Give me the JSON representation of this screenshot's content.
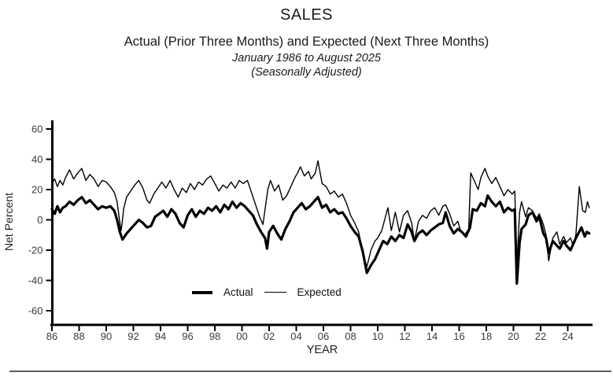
{
  "header": {
    "title": "SALES",
    "subtitle": "Actual (Prior Three Months) and Expected (Next Three Months)",
    "date_range": "January 1986 to August 2025",
    "adjustment_note": "(Seasonally Adjusted)"
  },
  "chart_data": {
    "type": "line",
    "title": "SALES",
    "xlabel": "YEAR",
    "ylabel": "Net Percent",
    "x_domain": [
      1986,
      2025.67
    ],
    "ylim": [
      -60,
      60
    ],
    "grid": false,
    "legend_position": "inside-bottom-left",
    "line_color": "#000000",
    "axis_color": "#000000",
    "tick_label_color": "#3c3c3c",
    "y_ticks": {
      "values": [
        60,
        40,
        20,
        0,
        -20,
        -40,
        -60
      ],
      "labels": [
        "60",
        "40",
        "20",
        "0",
        "-20",
        "-40",
        "-60"
      ]
    },
    "x_ticks": {
      "years": [
        1986,
        1988,
        1990,
        1992,
        1994,
        1996,
        1998,
        2000,
        2002,
        2004,
        2006,
        2008,
        2010,
        2012,
        2014,
        2016,
        2018,
        2020,
        2022,
        2024
      ],
      "labels": [
        "86",
        "88",
        "90",
        "92",
        "94",
        "96",
        "98",
        "00",
        "02",
        "04",
        "06",
        "08",
        "10",
        "12",
        "14",
        "16",
        "18",
        "20",
        "22",
        "24"
      ]
    },
    "series": [
      {
        "name": "Actual",
        "style": "thick",
        "points": [
          [
            1986.0,
            7
          ],
          [
            1986.2,
            4
          ],
          [
            1986.4,
            9
          ],
          [
            1986.6,
            5
          ],
          [
            1986.8,
            8
          ],
          [
            1987.0,
            9
          ],
          [
            1987.3,
            12
          ],
          [
            1987.6,
            10
          ],
          [
            1987.9,
            13
          ],
          [
            1988.2,
            15
          ],
          [
            1988.5,
            11
          ],
          [
            1988.8,
            13
          ],
          [
            1989.1,
            10
          ],
          [
            1989.4,
            7
          ],
          [
            1989.7,
            9
          ],
          [
            1990.0,
            8
          ],
          [
            1990.3,
            9
          ],
          [
            1990.6,
            6
          ],
          [
            1990.8,
            0
          ],
          [
            1991.0,
            -8
          ],
          [
            1991.2,
            -13
          ],
          [
            1991.5,
            -9
          ],
          [
            1991.8,
            -6
          ],
          [
            1992.1,
            -3
          ],
          [
            1992.4,
            0
          ],
          [
            1992.7,
            -2
          ],
          [
            1993.0,
            -5
          ],
          [
            1993.3,
            -4
          ],
          [
            1993.6,
            2
          ],
          [
            1993.9,
            4
          ],
          [
            1994.2,
            6
          ],
          [
            1994.5,
            2
          ],
          [
            1994.8,
            7
          ],
          [
            1995.1,
            4
          ],
          [
            1995.4,
            -2
          ],
          [
            1995.7,
            -5
          ],
          [
            1996.0,
            3
          ],
          [
            1996.3,
            7
          ],
          [
            1996.6,
            2
          ],
          [
            1996.9,
            6
          ],
          [
            1997.2,
            4
          ],
          [
            1997.5,
            8
          ],
          [
            1997.8,
            6
          ],
          [
            1998.1,
            9
          ],
          [
            1998.4,
            5
          ],
          [
            1998.7,
            10
          ],
          [
            1999.0,
            7
          ],
          [
            1999.3,
            12
          ],
          [
            1999.6,
            8
          ],
          [
            1999.9,
            11
          ],
          [
            2000.2,
            9
          ],
          [
            2000.5,
            6
          ],
          [
            2000.8,
            3
          ],
          [
            2001.1,
            -3
          ],
          [
            2001.4,
            -8
          ],
          [
            2001.7,
            -12
          ],
          [
            2001.85,
            -19
          ],
          [
            2002.0,
            -8
          ],
          [
            2002.3,
            -4
          ],
          [
            2002.6,
            -9
          ],
          [
            2002.9,
            -13
          ],
          [
            2003.2,
            -6
          ],
          [
            2003.5,
            -1
          ],
          [
            2003.8,
            5
          ],
          [
            2004.1,
            8
          ],
          [
            2004.4,
            11
          ],
          [
            2004.7,
            7
          ],
          [
            2005.0,
            9
          ],
          [
            2005.3,
            12
          ],
          [
            2005.6,
            15
          ],
          [
            2005.9,
            8
          ],
          [
            2006.2,
            10
          ],
          [
            2006.5,
            5
          ],
          [
            2006.8,
            7
          ],
          [
            2007.1,
            4
          ],
          [
            2007.4,
            5
          ],
          [
            2007.7,
            1
          ],
          [
            2008.0,
            -4
          ],
          [
            2008.3,
            -8
          ],
          [
            2008.6,
            -11
          ],
          [
            2008.9,
            -21
          ],
          [
            2009.2,
            -35
          ],
          [
            2009.5,
            -30
          ],
          [
            2009.8,
            -26
          ],
          [
            2010.1,
            -20
          ],
          [
            2010.4,
            -14
          ],
          [
            2010.7,
            -16
          ],
          [
            2011.0,
            -11
          ],
          [
            2011.3,
            -14
          ],
          [
            2011.6,
            -10
          ],
          [
            2011.9,
            -12
          ],
          [
            2012.2,
            -3
          ],
          [
            2012.5,
            -8
          ],
          [
            2012.7,
            -14
          ],
          [
            2013.0,
            -9
          ],
          [
            2013.3,
            -7
          ],
          [
            2013.6,
            -10
          ],
          [
            2013.9,
            -7
          ],
          [
            2014.2,
            -5
          ],
          [
            2014.5,
            -3
          ],
          [
            2014.8,
            -2
          ],
          [
            2015.0,
            5
          ],
          [
            2015.3,
            -4
          ],
          [
            2015.6,
            -9
          ],
          [
            2015.9,
            -6
          ],
          [
            2016.2,
            -8
          ],
          [
            2016.5,
            -11
          ],
          [
            2016.8,
            -5
          ],
          [
            2017.0,
            7
          ],
          [
            2017.3,
            6
          ],
          [
            2017.6,
            11
          ],
          [
            2017.9,
            9
          ],
          [
            2018.1,
            16
          ],
          [
            2018.4,
            12
          ],
          [
            2018.7,
            9
          ],
          [
            2019.0,
            12
          ],
          [
            2019.3,
            5
          ],
          [
            2019.6,
            8
          ],
          [
            2019.9,
            6
          ],
          [
            2020.1,
            7
          ],
          [
            2020.25,
            -42
          ],
          [
            2020.45,
            -15
          ],
          [
            2020.6,
            -6
          ],
          [
            2020.9,
            -3
          ],
          [
            2021.1,
            3
          ],
          [
            2021.4,
            5
          ],
          [
            2021.7,
            -1
          ],
          [
            2021.9,
            2
          ],
          [
            2022.2,
            -9
          ],
          [
            2022.4,
            -12
          ],
          [
            2022.6,
            -22
          ],
          [
            2022.9,
            -14
          ],
          [
            2023.2,
            -17
          ],
          [
            2023.4,
            -19
          ],
          [
            2023.7,
            -14
          ],
          [
            2023.9,
            -17
          ],
          [
            2024.2,
            -20
          ],
          [
            2024.4,
            -16
          ],
          [
            2024.6,
            -12
          ],
          [
            2024.9,
            -7
          ],
          [
            2025.0,
            -5
          ],
          [
            2025.25,
            -11
          ],
          [
            2025.4,
            -8
          ],
          [
            2025.58,
            -9
          ]
        ]
      },
      {
        "name": "Expected",
        "style": "thin",
        "points": [
          [
            1986.0,
            24
          ],
          [
            1986.2,
            27
          ],
          [
            1986.4,
            22
          ],
          [
            1986.6,
            26
          ],
          [
            1986.8,
            23
          ],
          [
            1987.0,
            28
          ],
          [
            1987.3,
            33
          ],
          [
            1987.6,
            27
          ],
          [
            1987.9,
            31
          ],
          [
            1988.2,
            34
          ],
          [
            1988.5,
            26
          ],
          [
            1988.8,
            30
          ],
          [
            1989.1,
            27
          ],
          [
            1989.4,
            22
          ],
          [
            1989.7,
            26
          ],
          [
            1990.0,
            25
          ],
          [
            1990.3,
            22
          ],
          [
            1990.6,
            18
          ],
          [
            1990.8,
            12
          ],
          [
            1991.0,
            -2
          ],
          [
            1991.1,
            -7
          ],
          [
            1991.3,
            8
          ],
          [
            1991.5,
            15
          ],
          [
            1991.8,
            19
          ],
          [
            1992.1,
            23
          ],
          [
            1992.4,
            26
          ],
          [
            1992.7,
            21
          ],
          [
            1993.0,
            13
          ],
          [
            1993.2,
            11
          ],
          [
            1993.5,
            17
          ],
          [
            1993.8,
            21
          ],
          [
            1994.1,
            25
          ],
          [
            1994.4,
            21
          ],
          [
            1994.7,
            26
          ],
          [
            1995.0,
            20
          ],
          [
            1995.3,
            15
          ],
          [
            1995.6,
            21
          ],
          [
            1995.9,
            18
          ],
          [
            1996.2,
            24
          ],
          [
            1996.5,
            20
          ],
          [
            1996.8,
            25
          ],
          [
            1997.1,
            23
          ],
          [
            1997.4,
            27
          ],
          [
            1997.7,
            29
          ],
          [
            1998.0,
            24
          ],
          [
            1998.3,
            19
          ],
          [
            1998.6,
            23
          ],
          [
            1998.9,
            21
          ],
          [
            1999.2,
            25
          ],
          [
            1999.5,
            21
          ],
          [
            1999.8,
            26
          ],
          [
            2000.1,
            24
          ],
          [
            2000.4,
            26
          ],
          [
            2000.7,
            18
          ],
          [
            2001.0,
            10
          ],
          [
            2001.3,
            2
          ],
          [
            2001.55,
            -3
          ],
          [
            2001.9,
            20
          ],
          [
            2002.1,
            26
          ],
          [
            2002.4,
            19
          ],
          [
            2002.7,
            23
          ],
          [
            2003.0,
            13
          ],
          [
            2003.3,
            16
          ],
          [
            2003.6,
            22
          ],
          [
            2003.9,
            28
          ],
          [
            2004.1,
            31
          ],
          [
            2004.3,
            35
          ],
          [
            2004.6,
            29
          ],
          [
            2004.9,
            32
          ],
          [
            2005.1,
            27
          ],
          [
            2005.4,
            31
          ],
          [
            2005.6,
            39
          ],
          [
            2005.9,
            24
          ],
          [
            2006.2,
            22
          ],
          [
            2006.5,
            17
          ],
          [
            2006.8,
            19
          ],
          [
            2007.1,
            15
          ],
          [
            2007.4,
            17
          ],
          [
            2007.7,
            11
          ],
          [
            2008.0,
            3
          ],
          [
            2008.3,
            -2
          ],
          [
            2008.6,
            -8
          ],
          [
            2008.9,
            -22
          ],
          [
            2009.2,
            -31
          ],
          [
            2009.5,
            -20
          ],
          [
            2009.8,
            -14
          ],
          [
            2010.0,
            -12
          ],
          [
            2010.3,
            -7
          ],
          [
            2010.75,
            8
          ],
          [
            2011.0,
            -7
          ],
          [
            2011.3,
            5
          ],
          [
            2011.6,
            -8
          ],
          [
            2011.9,
            3
          ],
          [
            2012.2,
            6
          ],
          [
            2012.5,
            -2
          ],
          [
            2012.7,
            -14
          ],
          [
            2013.0,
            -1
          ],
          [
            2013.3,
            3
          ],
          [
            2013.6,
            1
          ],
          [
            2013.9,
            6
          ],
          [
            2014.2,
            8
          ],
          [
            2014.5,
            3
          ],
          [
            2014.8,
            9
          ],
          [
            2015.0,
            10
          ],
          [
            2015.3,
            4
          ],
          [
            2015.6,
            -4
          ],
          [
            2015.9,
            -1
          ],
          [
            2016.1,
            -7
          ],
          [
            2016.4,
            -10
          ],
          [
            2016.7,
            -6
          ],
          [
            2016.85,
            31
          ],
          [
            2017.1,
            26
          ],
          [
            2017.4,
            20
          ],
          [
            2017.6,
            28
          ],
          [
            2017.9,
            34
          ],
          [
            2018.1,
            29
          ],
          [
            2018.4,
            24
          ],
          [
            2018.7,
            28
          ],
          [
            2019.0,
            22
          ],
          [
            2019.3,
            16
          ],
          [
            2019.6,
            20
          ],
          [
            2019.9,
            17
          ],
          [
            2020.1,
            19
          ],
          [
            2020.25,
            -30
          ],
          [
            2020.45,
            5
          ],
          [
            2020.6,
            12
          ],
          [
            2020.9,
            2
          ],
          [
            2021.1,
            8
          ],
          [
            2021.4,
            6
          ],
          [
            2021.7,
            1
          ],
          [
            2021.9,
            4
          ],
          [
            2022.2,
            -3
          ],
          [
            2022.4,
            -10
          ],
          [
            2022.6,
            -27
          ],
          [
            2022.9,
            -12
          ],
          [
            2023.2,
            -8
          ],
          [
            2023.4,
            -16
          ],
          [
            2023.7,
            -11
          ],
          [
            2023.9,
            -15
          ],
          [
            2024.2,
            -12
          ],
          [
            2024.4,
            -17
          ],
          [
            2024.6,
            -10
          ],
          [
            2024.85,
            22
          ],
          [
            2025.1,
            6
          ],
          [
            2025.3,
            5
          ],
          [
            2025.45,
            12
          ],
          [
            2025.58,
            8
          ]
        ]
      }
    ]
  },
  "footer": {
    "divider_color": "#5f5f5f"
  }
}
